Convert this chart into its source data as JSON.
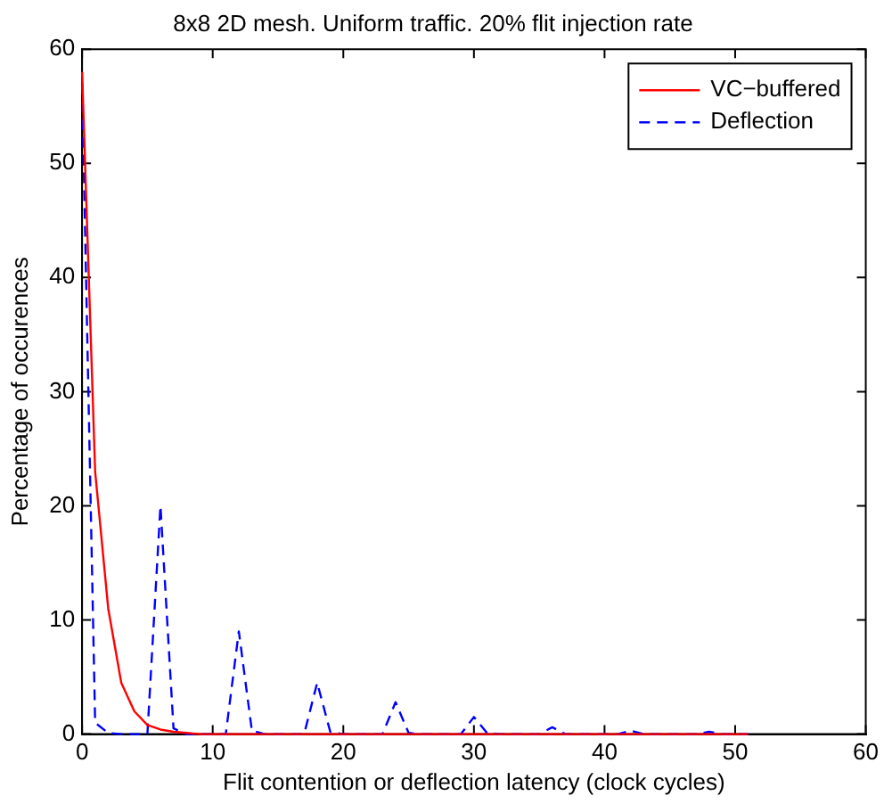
{
  "chart_data": {
    "type": "line",
    "title": "8x8 2D mesh. Uniform traffic. 20% flit injection rate",
    "xlabel": "Flit contention or deflection latency (clock cycles)",
    "ylabel": "Percentage of occurences",
    "x": [
      0,
      1,
      2,
      3,
      4,
      5,
      6,
      7,
      8,
      9,
      10,
      11,
      12,
      13,
      14,
      15,
      16,
      17,
      18,
      19,
      20,
      21,
      22,
      23,
      24,
      25,
      26,
      27,
      28,
      29,
      30,
      31,
      32,
      33,
      34,
      35,
      36,
      37,
      38,
      39,
      40,
      41,
      42,
      43,
      44,
      45,
      46,
      47,
      48,
      49,
      50,
      51
    ],
    "series": [
      {
        "name": "VC−buffered",
        "color": "#ff0000",
        "line_style": "solid",
        "values": [
          58,
          23,
          11,
          4.5,
          2,
          0.8,
          0.4,
          0.2,
          0.1,
          0,
          0,
          0,
          0,
          0,
          0,
          0,
          0,
          0,
          0,
          0,
          0,
          0,
          0,
          0,
          0,
          0,
          0,
          0,
          0,
          0,
          0,
          0,
          0,
          0,
          0,
          0,
          0,
          0,
          0,
          0,
          0,
          0,
          0,
          0,
          0,
          0,
          0,
          0,
          0,
          0,
          0,
          0
        ]
      },
      {
        "name": "Deflection",
        "color": "#0000ff",
        "line_style": "dashed",
        "values": [
          57,
          1,
          0.1,
          0,
          0,
          0,
          20,
          0.5,
          0,
          0,
          0,
          0,
          9,
          0.3,
          0,
          0,
          0,
          0,
          4.5,
          0.2,
          0,
          0,
          0,
          0,
          2.8,
          0.1,
          0,
          0,
          0,
          0,
          1.5,
          0.1,
          0,
          0,
          0,
          0,
          0.6,
          0,
          0,
          0,
          0,
          0,
          0.3,
          0,
          0,
          0,
          0,
          0,
          0.2,
          0,
          0,
          0
        ]
      }
    ],
    "xlim": [
      0,
      60
    ],
    "xticks": [
      0,
      10,
      20,
      30,
      40,
      50,
      60
    ],
    "ylim": [
      0,
      60
    ],
    "yticks": [
      0,
      10,
      20,
      30,
      40,
      50,
      60
    ],
    "grid": false,
    "legend": "top right",
    "marker": "none"
  }
}
